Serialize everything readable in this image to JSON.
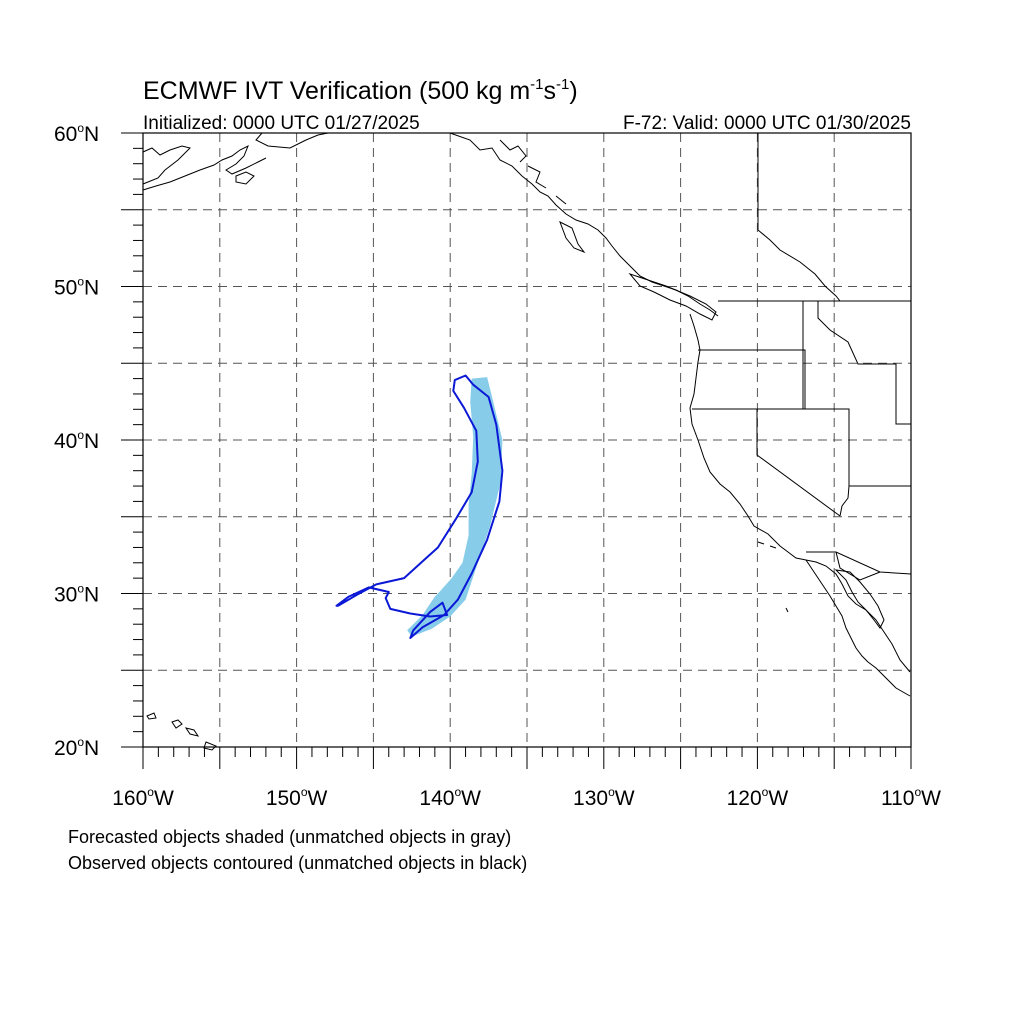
{
  "title": {
    "main": "ECMWF IVT Verification (500 kg m",
    "sup1": "-1",
    "mid": "s",
    "sup2": "-1",
    "close": ")"
  },
  "subtitle": {
    "left": "Initialized: 0000 UTC 01/27/2025",
    "right": "F-72: Valid: 0000 UTC 01/30/2025"
  },
  "map": {
    "lon_range": [
      -160,
      -110
    ],
    "lat_range": [
      20,
      60
    ],
    "lat_labels": [
      {
        "value": 60,
        "deg": "60",
        "hemi": "N"
      },
      {
        "value": 50,
        "deg": "50",
        "hemi": "N"
      },
      {
        "value": 40,
        "deg": "40",
        "hemi": "N"
      },
      {
        "value": 30,
        "deg": "30",
        "hemi": "N"
      },
      {
        "value": 20,
        "deg": "20",
        "hemi": "N"
      }
    ],
    "lon_labels": [
      {
        "value": -160,
        "deg": "160",
        "hemi": "W"
      },
      {
        "value": -150,
        "deg": "150",
        "hemi": "W"
      },
      {
        "value": -140,
        "deg": "140",
        "hemi": "W"
      },
      {
        "value": -130,
        "deg": "130",
        "hemi": "W"
      },
      {
        "value": -120,
        "deg": "120",
        "hemi": "W"
      },
      {
        "value": -110,
        "deg": "110",
        "hemi": "W"
      }
    ],
    "gridline_step_deg": 5,
    "minor_tick_deg": 1
  },
  "colors": {
    "forecast_fill": "#87cdea",
    "observed_contour": "#0b18d6",
    "coast": "#000000",
    "grid": "#555555"
  },
  "objects": {
    "forecast": {
      "label": "forecast-object",
      "polygon_lonlat": [
        [
          -138.6,
          44
        ],
        [
          -137.6,
          44.1
        ],
        [
          -137.2,
          42.5
        ],
        [
          -136.6,
          40
        ],
        [
          -136.7,
          37.3
        ],
        [
          -137.4,
          34.4
        ],
        [
          -138.3,
          31.7
        ],
        [
          -139.0,
          29.6
        ],
        [
          -140.0,
          28.5
        ],
        [
          -141.2,
          27.7
        ],
        [
          -142.5,
          27.2
        ],
        [
          -142.8,
          27.6
        ],
        [
          -141.8,
          28.6
        ],
        [
          -141.0,
          29.8
        ],
        [
          -140.7,
          30.1
        ],
        [
          -139.9,
          31.0
        ],
        [
          -139.2,
          32.0
        ],
        [
          -138.8,
          33.8
        ],
        [
          -138.8,
          35.8
        ],
        [
          -138.6,
          37.8
        ],
        [
          -138.5,
          40.2
        ],
        [
          -138.7,
          42.5
        ]
      ]
    },
    "observed": {
      "label": "observed-contour",
      "polygon_lonlat": [
        [
          -139.7,
          43.9
        ],
        [
          -139.0,
          44.2
        ],
        [
          -138.5,
          43.6
        ],
        [
          -137.5,
          42.8
        ],
        [
          -137.0,
          41.0
        ],
        [
          -136.6,
          38.0
        ],
        [
          -136.8,
          36.0
        ],
        [
          -137.6,
          33.5
        ],
        [
          -138.6,
          31.3
        ],
        [
          -139.5,
          29.6
        ],
        [
          -140.4,
          28.6
        ],
        [
          -141.8,
          27.8
        ],
        [
          -142.6,
          27.1
        ],
        [
          -142.4,
          27.6
        ],
        [
          -141.3,
          28.8
        ],
        [
          -140.5,
          29.4
        ],
        [
          -140.2,
          28.6
        ],
        [
          -141.3,
          28.5
        ],
        [
          -142.6,
          28.7
        ],
        [
          -143.9,
          29.0
        ],
        [
          -144.2,
          29.7
        ],
        [
          -144.0,
          30.1
        ],
        [
          -145.3,
          30.4
        ],
        [
          -146.6,
          29.8
        ],
        [
          -147.4,
          29.2
        ],
        [
          -147.3,
          29.2
        ],
        [
          -146.1,
          29.9
        ],
        [
          -144.8,
          30.6
        ],
        [
          -143.0,
          31.0
        ],
        [
          -141.9,
          32.0
        ],
        [
          -140.8,
          33.0
        ],
        [
          -139.6,
          34.9
        ],
        [
          -138.6,
          36.6
        ],
        [
          -138.2,
          38.6
        ],
        [
          -138.3,
          40.6
        ],
        [
          -139.1,
          42.1
        ],
        [
          -139.8,
          43.2
        ]
      ]
    }
  },
  "notes": {
    "line1": "Forecasted objects shaded (unmatched objects in gray)",
    "line2": "Observed objects contoured (unmatched objects in black)"
  }
}
